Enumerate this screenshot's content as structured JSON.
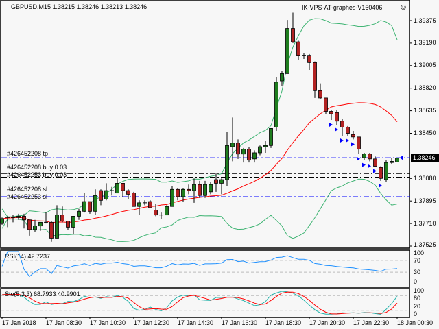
{
  "header": {
    "symbol_info": "GBPUSD,M15  1.38215 1.38246 1.38213 1.38246",
    "expert_name": "IK-VPS-AT-graphes-V160406",
    "expert_icon": "smiley-icon"
  },
  "colors": {
    "background": "#f7f7f7",
    "bull_candle": "#1e7d1e",
    "bear_candle": "#b22222",
    "bollinger_bands": "#3cb371",
    "moving_average": "#ff0000",
    "tp_sl_lines": "#0000ff",
    "order_lines": "#000000",
    "rsi_line": "#1e90ff",
    "stoch_main": "#20b2aa",
    "stoch_signal": "#ff0000"
  },
  "price_axis": {
    "ticks": [
      "1.39375",
      "1.39190",
      "1.39005",
      "1.38820",
      "1.38635",
      "1.38450",
      "1.38080",
      "1.37895",
      "1.37710",
      "1.37525"
    ],
    "current_price": "1.38246"
  },
  "orders": [
    {
      "label": "#426452208 tp",
      "price": 1.3825,
      "type": "tp"
    },
    {
      "label": "#426452208 buy 0.03",
      "price": 1.3812,
      "type": "open"
    },
    {
      "label": "#426452253 buy 0.03",
      "price": 1.3809,
      "type": "open"
    },
    {
      "label": "#426452208 sl",
      "price": 1.3793,
      "type": "sl"
    },
    {
      "label": "#426452253 sl",
      "price": 1.3791,
      "type": "sl"
    }
  ],
  "rsi": {
    "label": "RSI(14) 42.7237",
    "levels": [
      "100",
      "70",
      "30",
      "0"
    ]
  },
  "stochastic": {
    "label": "Sto(5,3,3) 68.7933 40.9901",
    "levels": [
      "100",
      "80",
      "20",
      "0"
    ]
  },
  "time_axis": [
    "17 Jan 2018",
    "17 Jan 08:30",
    "17 Jan 10:30",
    "17 Jan 12:30",
    "17 Jan 14:30",
    "17 Jan 16:30",
    "17 Jan 18:30",
    "17 Jan 20:30",
    "17 Jan 22:30",
    "18 Jan 00:30"
  ],
  "chart_data": {
    "type": "candlestick",
    "symbol": "GBPUSD",
    "timeframe": "M15",
    "ylim": [
      1.37525,
      1.39375
    ],
    "ohlc": [
      [
        1.3771,
        1.3776,
        1.377,
        1.3775
      ],
      [
        1.3776,
        1.3777,
        1.3768,
        1.3776
      ],
      [
        1.3776,
        1.3778,
        1.3772,
        1.3776
      ],
      [
        1.3776,
        1.3779,
        1.3774,
        1.3777
      ],
      [
        1.3777,
        1.3779,
        1.3767,
        1.3774
      ],
      [
        1.3774,
        1.3774,
        1.3761,
        1.3766
      ],
      [
        1.3766,
        1.3774,
        1.3764,
        1.3769
      ],
      [
        1.3769,
        1.3772,
        1.3765,
        1.3772
      ],
      [
        1.3772,
        1.378,
        1.3771,
        1.3772
      ],
      [
        1.3772,
        1.3773,
        1.3756,
        1.3759
      ],
      [
        1.3759,
        1.3786,
        1.3759,
        1.3778
      ],
      [
        1.3778,
        1.3785,
        1.3772,
        1.3773
      ],
      [
        1.3773,
        1.3773,
        1.3766,
        1.3768
      ],
      [
        1.3768,
        1.3777,
        1.3762,
        1.3777
      ],
      [
        1.3777,
        1.3783,
        1.3774,
        1.3781
      ],
      [
        1.3781,
        1.3796,
        1.378,
        1.3789
      ],
      [
        1.3789,
        1.3789,
        1.3779,
        1.3781
      ],
      [
        1.3781,
        1.3799,
        1.3778,
        1.3794
      ],
      [
        1.3798,
        1.3799,
        1.3786,
        1.379
      ],
      [
        1.3791,
        1.3804,
        1.379,
        1.3798
      ],
      [
        1.3798,
        1.3801,
        1.3794,
        1.3798
      ],
      [
        1.3796,
        1.3808,
        1.3796,
        1.3804
      ],
      [
        1.3804,
        1.3804,
        1.3793,
        1.3798
      ],
      [
        1.3798,
        1.3799,
        1.3791,
        1.3795
      ],
      [
        1.3796,
        1.3797,
        1.3785,
        1.3785
      ],
      [
        1.3785,
        1.379,
        1.3778,
        1.3788
      ],
      [
        1.3788,
        1.379,
        1.3786,
        1.3788
      ],
      [
        1.3789,
        1.379,
        1.3784,
        1.3784
      ],
      [
        1.3782,
        1.3787,
        1.3777,
        1.3778
      ],
      [
        1.3778,
        1.378,
        1.3775,
        1.3778
      ],
      [
        1.3778,
        1.3786,
        1.3778,
        1.3785
      ],
      [
        1.3785,
        1.3802,
        1.3785,
        1.3799
      ],
      [
        1.3799,
        1.38,
        1.379,
        1.3793
      ],
      [
        1.3793,
        1.38,
        1.3789,
        1.3799
      ],
      [
        1.3799,
        1.3803,
        1.3795,
        1.3798
      ],
      [
        1.3798,
        1.3808,
        1.3788,
        1.3803
      ],
      [
        1.3803,
        1.3806,
        1.3792,
        1.3794
      ],
      [
        1.3794,
        1.3806,
        1.3792,
        1.3803
      ],
      [
        1.3797,
        1.3805,
        1.3795,
        1.3803
      ],
      [
        1.3807,
        1.3812,
        1.3797,
        1.3804
      ],
      [
        1.3804,
        1.3808,
        1.3795,
        1.3807
      ],
      [
        1.3807,
        1.3846,
        1.3802,
        1.3835
      ],
      [
        1.3834,
        1.3858,
        1.3822,
        1.3837
      ],
      [
        1.3837,
        1.384,
        1.3824,
        1.3828
      ],
      [
        1.3828,
        1.3833,
        1.3821,
        1.3832
      ],
      [
        1.3832,
        1.3834,
        1.3821,
        1.3823
      ],
      [
        1.3824,
        1.3831,
        1.3821,
        1.3829
      ],
      [
        1.3829,
        1.3835,
        1.3827,
        1.3834
      ],
      [
        1.3834,
        1.3839,
        1.3829,
        1.3835
      ],
      [
        1.3835,
        1.3849,
        1.3833,
        1.3849
      ],
      [
        1.385,
        1.3891,
        1.3847,
        1.3887
      ],
      [
        1.3888,
        1.3896,
        1.3884,
        1.3894
      ],
      [
        1.3894,
        1.3938,
        1.3894,
        1.3931
      ],
      [
        1.3931,
        1.3944,
        1.3919,
        1.392
      ],
      [
        1.392,
        1.3921,
        1.3905,
        1.3909
      ],
      [
        1.3909,
        1.3911,
        1.3906,
        1.3909
      ],
      [
        1.3909,
        1.391,
        1.3897,
        1.3903
      ],
      [
        1.3903,
        1.3904,
        1.3874,
        1.388
      ],
      [
        1.388,
        1.3886,
        1.3873,
        1.3874
      ],
      [
        1.3874,
        1.3874,
        1.3861,
        1.3863
      ],
      [
        1.3863,
        1.3864,
        1.3856,
        1.3861
      ],
      [
        1.3862,
        1.3864,
        1.3852,
        1.3855
      ],
      [
        1.3855,
        1.3857,
        1.3843,
        1.385
      ],
      [
        1.385,
        1.3851,
        1.3843,
        1.3845
      ],
      [
        1.3844,
        1.3847,
        1.384,
        1.3842
      ],
      [
        1.3842,
        1.3842,
        1.3828,
        1.3832
      ],
      [
        1.3825,
        1.3829,
        1.3823,
        1.3828
      ],
      [
        1.3828,
        1.3829,
        1.3822,
        1.3824
      ],
      [
        1.3824,
        1.3826,
        1.3818,
        1.3818
      ],
      [
        1.3817,
        1.3818,
        1.3806,
        1.3808
      ],
      [
        1.3807,
        1.3823,
        1.3805,
        1.3821
      ],
      [
        1.3821,
        1.3825,
        1.382,
        1.3822
      ],
      [
        1.38215,
        1.38246,
        1.38213,
        1.38246
      ]
    ]
  }
}
